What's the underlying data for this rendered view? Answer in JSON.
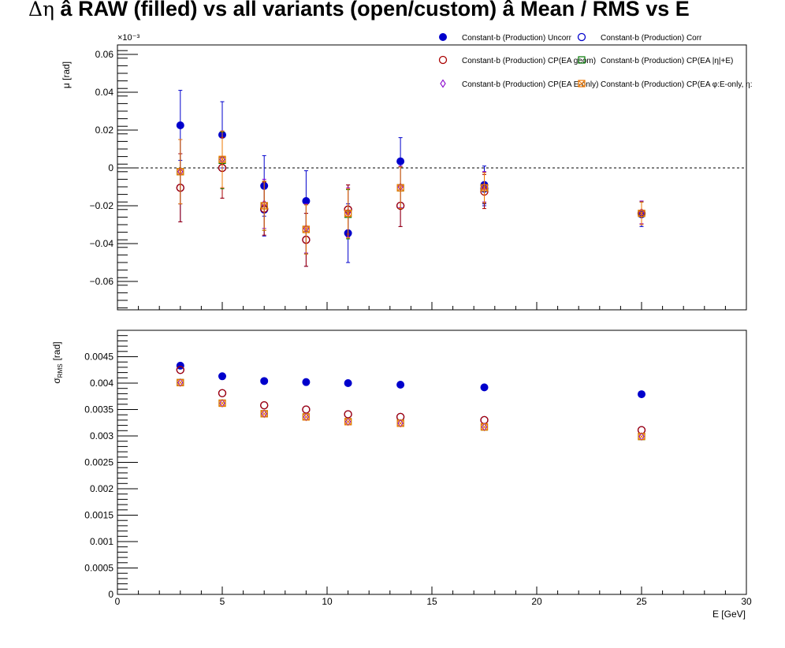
{
  "title": {
    "symbol": "Δη",
    "text": " â RAW (filled) vs all variants (open/custom) â Mean / RMS vs E"
  },
  "chart_data": [
    {
      "type": "scatter",
      "panel": "mean",
      "ylabel": "μ [rad]",
      "exponent_label": "×10⁻³",
      "ylim": [
        -0.075,
        0.065
      ],
      "yticks": [
        -0.06,
        -0.04,
        -0.02,
        0,
        0.02,
        0.04,
        0.06
      ],
      "ytick_labels": [
        "−0.06",
        "−0.04",
        "−0.02",
        "0",
        "0.02",
        "0.04",
        "0.06"
      ],
      "zero_line": true,
      "x": [
        3,
        5,
        7,
        9,
        11,
        13.5,
        17.5,
        25
      ],
      "series": [
        {
          "name": "Constant-b (Production) Uncorr",
          "color": "#0000cc",
          "marker": "filled-circle",
          "values": [
            0.0225,
            0.0175,
            -0.0095,
            -0.0175,
            -0.0345,
            0.0035,
            -0.009,
            -0.0245
          ],
          "errors": [
            0.0185,
            0.0175,
            0.016,
            0.016,
            0.0155,
            0.0125,
            0.01,
            0.0065
          ]
        },
        {
          "name": "Constant-b (Production) Corr",
          "color": "#0000cc",
          "marker": "open-circle",
          "values": [
            -0.0105,
            0.0,
            -0.022,
            -0.038,
            -0.022,
            -0.02,
            -0.011,
            -0.024
          ],
          "errors": [
            0.018,
            0.016,
            0.014,
            0.014,
            0.013,
            0.011,
            0.009,
            0.006
          ]
        },
        {
          "name": "Constant-b (Production) CP(EA geom)",
          "color": "#aa0000",
          "marker": "open-circle",
          "values": [
            -0.0105,
            0.0,
            -0.0215,
            -0.038,
            -0.022,
            -0.02,
            -0.0125,
            -0.024
          ],
          "errors": [
            0.018,
            0.016,
            0.014,
            0.014,
            0.013,
            0.011,
            0.009,
            0.006
          ]
        },
        {
          "name": "Constant-b (Production) CP(EA |η|+E)",
          "color": "#007700",
          "marker": "open-square",
          "values": [
            -0.002,
            0.004,
            -0.02,
            -0.0325,
            -0.0245,
            -0.0105,
            -0.0105,
            -0.024
          ],
          "errors": [
            0.017,
            0.015,
            0.013,
            0.013,
            0.013,
            0.011,
            0.008,
            0.006
          ]
        },
        {
          "name": "Constant-b (Production) CP(EA E-only)",
          "color": "#8800cc",
          "marker": "open-diamond",
          "values": [
            -0.002,
            0.0045,
            -0.019,
            -0.032,
            -0.0235,
            -0.01,
            -0.01,
            -0.0235
          ],
          "errors": [
            0.017,
            0.015,
            0.013,
            0.013,
            0.013,
            0.011,
            0.008,
            0.006
          ]
        },
        {
          "name": "Constant-b (Production) CP(EA φ:E-only, η:",
          "color": "#ee7700",
          "marker": "x-square",
          "values": [
            -0.002,
            0.0045,
            -0.02,
            -0.0325,
            -0.024,
            -0.0105,
            -0.0105,
            -0.024
          ],
          "errors": [
            0.017,
            0.015,
            0.013,
            0.013,
            0.013,
            0.011,
            0.008,
            0.006
          ]
        }
      ],
      "legend_position": "top-right"
    },
    {
      "type": "scatter",
      "panel": "rms",
      "ylabel": "σ_RMS [rad]",
      "ylabel_main": "σ",
      "ylabel_sub": "RMS",
      "ylabel_unit": "[rad]",
      "xlabel": "E [GeV]",
      "xlim": [
        0,
        30
      ],
      "xticks": [
        0,
        5,
        10,
        15,
        20,
        25,
        30
      ],
      "xtick_labels": [
        "0",
        "5",
        "10",
        "15",
        "20",
        "25",
        "30"
      ],
      "ylim": [
        0,
        0.005
      ],
      "yticks": [
        0,
        0.0005,
        0.001,
        0.0015,
        0.002,
        0.0025,
        0.003,
        0.0035,
        0.004,
        0.0045
      ],
      "ytick_labels": [
        "0",
        "0.0005",
        "0.001",
        "0.0015",
        "0.002",
        "0.0025",
        "0.003",
        "0.0035",
        "0.004",
        "0.0045"
      ],
      "x": [
        3,
        5,
        7,
        9,
        11,
        13.5,
        17.5,
        25
      ],
      "series": [
        {
          "name": "Constant-b (Production) Uncorr",
          "color": "#0000cc",
          "marker": "filled-circle",
          "values": [
            0.00433,
            0.00413,
            0.00404,
            0.00402,
            0.004,
            0.00397,
            0.00392,
            0.00379
          ]
        },
        {
          "name": "Constant-b (Production) Corr",
          "color": "#0000cc",
          "marker": "open-circle",
          "values": [
            0.00425,
            0.00381,
            0.00358,
            0.0035,
            0.00341,
            0.00336,
            0.0033,
            0.00311
          ]
        },
        {
          "name": "Constant-b (Production) CP(EA geom)",
          "color": "#aa0000",
          "marker": "open-circle",
          "values": [
            0.00425,
            0.00381,
            0.00358,
            0.0035,
            0.00341,
            0.00336,
            0.0033,
            0.00311
          ]
        },
        {
          "name": "Constant-b (Production) CP(EA |η|+E)",
          "color": "#007700",
          "marker": "open-square",
          "values": [
            0.00401,
            0.00362,
            0.00342,
            0.00336,
            0.00327,
            0.00324,
            0.00317,
            0.00299
          ]
        },
        {
          "name": "Constant-b (Production) CP(EA E-only)",
          "color": "#8800cc",
          "marker": "open-diamond",
          "values": [
            0.00401,
            0.00362,
            0.00342,
            0.00336,
            0.00327,
            0.00324,
            0.00317,
            0.00299
          ]
        },
        {
          "name": "Constant-b (Production) CP(EA φ:E-only, η:",
          "color": "#ee7700",
          "marker": "x-square",
          "values": [
            0.00401,
            0.00362,
            0.00342,
            0.00336,
            0.00327,
            0.00324,
            0.00317,
            0.00299
          ]
        }
      ]
    }
  ]
}
